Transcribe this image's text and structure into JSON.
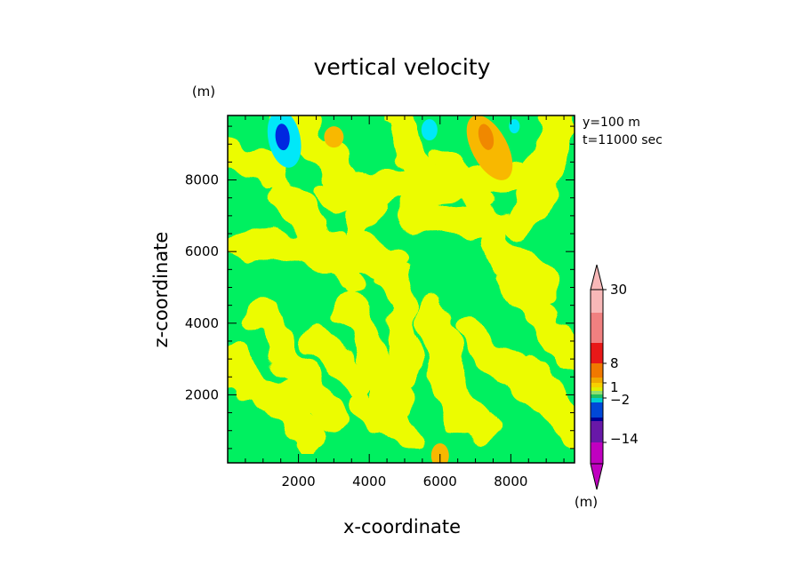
{
  "chart_data": {
    "type": "heatmap",
    "title": "vertical velocity",
    "xlabel": "x-coordinate",
    "ylabel": "z-coordinate",
    "y_unit": "(m)",
    "xlim": [
      0,
      9800
    ],
    "ylim": [
      100,
      9800
    ],
    "x_ticks": [
      2000,
      4000,
      6000,
      8000
    ],
    "y_ticks": [
      2000,
      4000,
      6000,
      8000
    ],
    "info_lines": [
      "y=100  m",
      "t=11000  sec"
    ],
    "colorbar": {
      "unit": "(m)",
      "labels": [
        "30",
        "8",
        "1",
        "-2",
        "-14"
      ],
      "colors_top_to_bottom": [
        "#f8b8b8",
        "#f08080",
        "#e81818",
        "#f07800",
        "#f0a800",
        "#f8d000",
        "#e0f000",
        "#90e070",
        "#20c060",
        "#00d0d0",
        "#0048d8",
        "#000098",
        "#6818a8",
        "#c000c0"
      ]
    },
    "colors": {
      "weak_up": "#ecfc00",
      "weak_down": "#00f060",
      "strong_up": "#f8b800",
      "stronger_up": "#f08800",
      "strong_down": "#00e8f8",
      "stronger_down": "#0028e0"
    },
    "features": [
      {
        "kind": "downdraft",
        "x": 1600,
        "z": 9200,
        "level": "stronger_down"
      },
      {
        "kind": "downdraft",
        "x": 5700,
        "z": 9400,
        "level": "strong_down"
      },
      {
        "kind": "downdraft",
        "x": 8100,
        "z": 9500,
        "level": "strong_down"
      },
      {
        "kind": "updraft",
        "x": 7300,
        "z": 9200,
        "level": "stronger_up"
      },
      {
        "kind": "updraft",
        "x": 3000,
        "z": 9200,
        "level": "strong_up"
      },
      {
        "kind": "updraft",
        "x": 6000,
        "z": 300,
        "level": "strong_up"
      }
    ]
  }
}
